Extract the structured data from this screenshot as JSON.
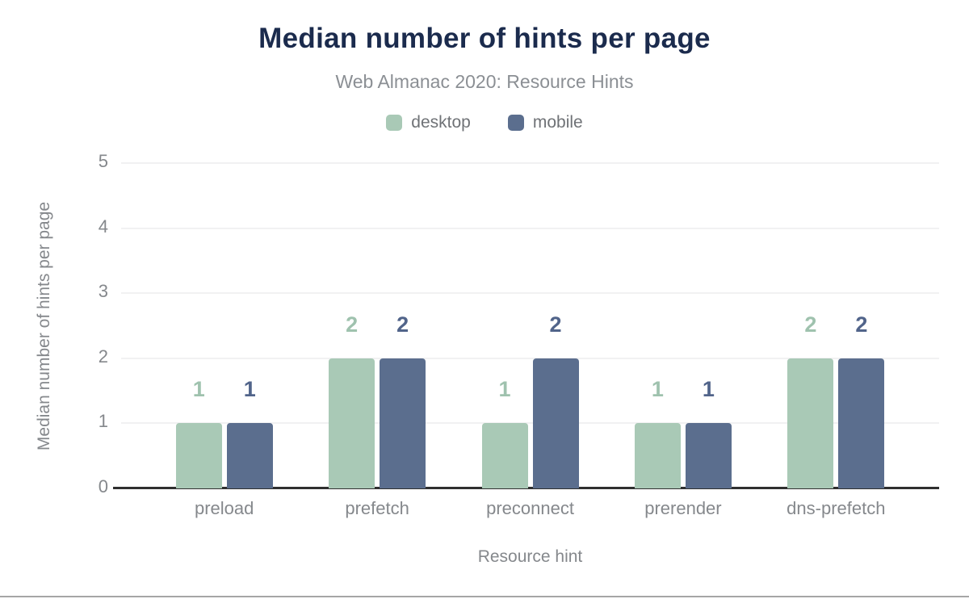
{
  "header": {
    "title": "Median number of hints per page",
    "subtitle": "Web Almanac 2020: Resource Hints"
  },
  "colors": {
    "title_text": "#1b2b4d",
    "subtitle_text": "#8b8f94",
    "axis_text": "#85888c",
    "legend_text": "#6f7276",
    "gridline": "#f1f1f2",
    "axis_line": "#2f2f2f",
    "footer_rule": "#a6a6a6",
    "desktop": "#a9c9b6",
    "mobile": "#5b6e8e"
  },
  "chart_data": {
    "type": "bar",
    "title": "Median number of hints per page",
    "subtitle": "Web Almanac 2020: Resource Hints",
    "categories": [
      "preload",
      "prefetch",
      "preconnect",
      "prerender",
      "dns-prefetch"
    ],
    "series": [
      {
        "name": "desktop",
        "color": "#a9c9b6",
        "label_color": "#9fc2ae",
        "values": [
          1,
          2,
          1,
          1,
          2
        ]
      },
      {
        "name": "mobile",
        "color": "#5b6e8e",
        "label_color": "#51648a",
        "values": [
          1,
          2,
          2,
          1,
          2
        ]
      }
    ],
    "xlabel": "Resource hint",
    "ylabel": "Median number of hints per page",
    "ylim": [
      0,
      5
    ],
    "yticks": [
      0,
      1,
      2,
      3,
      4,
      5
    ],
    "grid": true,
    "legend_position": "top",
    "bar_value_labels": true
  }
}
